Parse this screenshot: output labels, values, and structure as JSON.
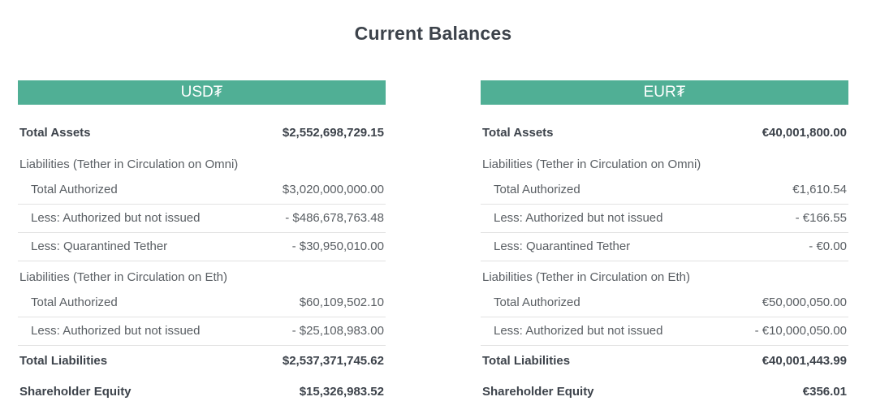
{
  "page": {
    "title": "Current Balances"
  },
  "colors": {
    "accent": "#50af95",
    "band_text": "#ffffff",
    "bold_text": "#3d434b",
    "regular_text": "#595e63",
    "divider": "#e2e2e2"
  },
  "tables": [
    {
      "currency": "USD₮",
      "rows": [
        {
          "type": "total",
          "label": "Total Assets",
          "value": "$2,552,698,729.15"
        },
        {
          "type": "section",
          "label": "Liabilities (Tether in Circulation on Omni)",
          "value": ""
        },
        {
          "type": "sub",
          "label": "Total Authorized",
          "value": "$3,020,000,000.00"
        },
        {
          "type": "sub",
          "label": "Less: Authorized but not issued",
          "value": "- $486,678,763.48"
        },
        {
          "type": "sub",
          "label": "Less: Quarantined Tether",
          "value": "- $30,950,010.00"
        },
        {
          "type": "section",
          "label": "Liabilities (Tether in Circulation on Eth)",
          "value": ""
        },
        {
          "type": "sub",
          "label": "Total Authorized",
          "value": "$60,109,502.10"
        },
        {
          "type": "sub",
          "label": "Less: Authorized but not issued",
          "value": "- $25,108,983.00"
        },
        {
          "type": "total",
          "label": "Total Liabilities",
          "value": "$2,537,371,745.62"
        },
        {
          "type": "total",
          "label": "Shareholder Equity",
          "value": "$15,326,983.52"
        }
      ]
    },
    {
      "currency": "EUR₮",
      "rows": [
        {
          "type": "total",
          "label": "Total Assets",
          "value": "€40,001,800.00"
        },
        {
          "type": "section",
          "label": "Liabilities (Tether in Circulation on Omni)",
          "value": ""
        },
        {
          "type": "sub",
          "label": "Total Authorized",
          "value": "€1,610.54"
        },
        {
          "type": "sub",
          "label": "Less: Authorized but not issued",
          "value": "- €166.55"
        },
        {
          "type": "sub",
          "label": "Less: Quarantined Tether",
          "value": "- €0.00"
        },
        {
          "type": "section",
          "label": "Liabilities (Tether in Circulation on Eth)",
          "value": ""
        },
        {
          "type": "sub",
          "label": "Total Authorized",
          "value": "€50,000,050.00"
        },
        {
          "type": "sub",
          "label": "Less: Authorized but not issued",
          "value": "- €10,000,050.00"
        },
        {
          "type": "total",
          "label": "Total Liabilities",
          "value": "€40,001,443.99"
        },
        {
          "type": "total",
          "label": "Shareholder Equity",
          "value": "€356.01"
        }
      ]
    }
  ]
}
